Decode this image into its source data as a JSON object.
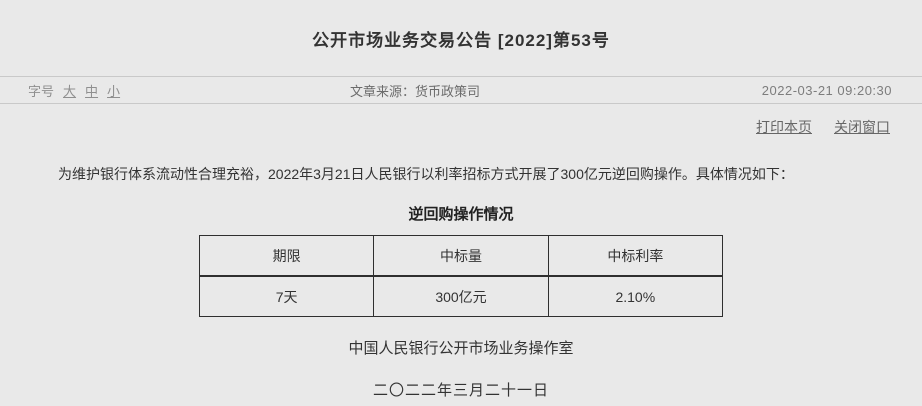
{
  "header": {
    "title": "公开市场业务交易公告 [2022]第53号"
  },
  "meta": {
    "font_size_label": "字号",
    "font_size_options": [
      "大",
      "中",
      "小"
    ],
    "source_label": "文章来源：",
    "source": "货币政策司",
    "datetime": "2022-03-21 09:20:30"
  },
  "actions": {
    "print": "打印本页",
    "close": "关闭窗口"
  },
  "article": {
    "paragraph": "为维护银行体系流动性合理充裕，2022年3月21日人民银行以利率招标方式开展了300亿元逆回购操作。具体情况如下："
  },
  "table": {
    "title": "逆回购操作情况",
    "headers": [
      "期限",
      "中标量",
      "中标利率"
    ],
    "rows": [
      [
        "7天",
        "300亿元",
        "2.10%"
      ]
    ]
  },
  "footer": {
    "org": "中国人民银行公开市场业务操作室",
    "date": "二〇二二年三月二十一日"
  },
  "colors": {
    "background": "#e9e9e9",
    "divider": "#c9c9c9",
    "table_border": "#2f2f2f",
    "text_primary": "#333333",
    "text_muted": "#8a8a8a",
    "link": "#666666"
  }
}
